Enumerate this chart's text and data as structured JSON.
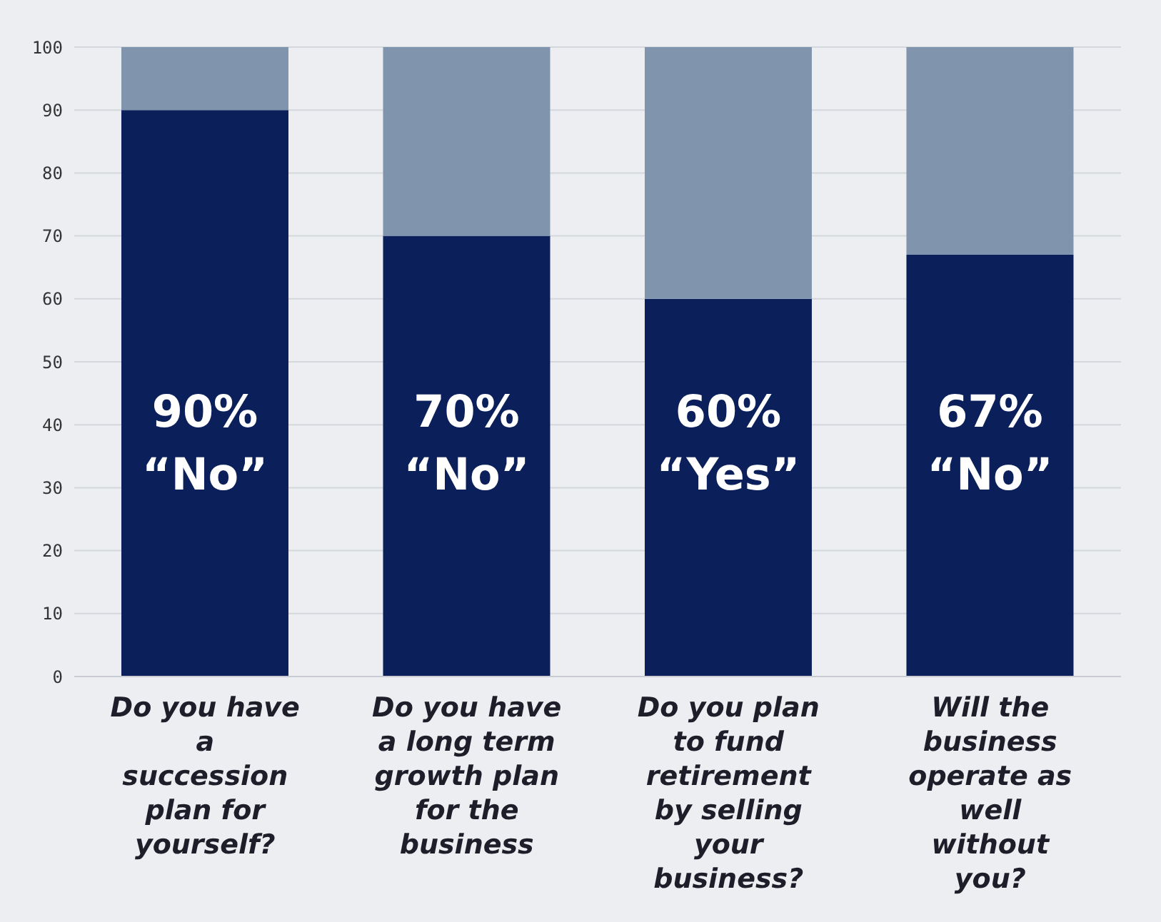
{
  "chart_data": {
    "type": "bar",
    "stacked": true,
    "categories": [
      "Do you have a succession plan for yourself?",
      "Do you have a long term growth plan for the business",
      "Do you plan to fund retirement by selling your business?",
      "Will the business operate as well without you?"
    ],
    "series": [
      {
        "color": "#0b1f5a",
        "values": [
          90,
          70,
          60,
          67
        ],
        "value_labels": [
          "90%\n“No”",
          "70%\n“No”",
          "60%\n“Yes”",
          "67%\n“No”"
        ]
      },
      {
        "color": "#8094ae",
        "values": [
          10,
          30,
          40,
          33
        ]
      }
    ],
    "ylim": [
      0,
      100
    ],
    "yticks": [
      0,
      10,
      20,
      30,
      40,
      50,
      60,
      70,
      80,
      90,
      100
    ],
    "grid": "y",
    "legend": false
  }
}
